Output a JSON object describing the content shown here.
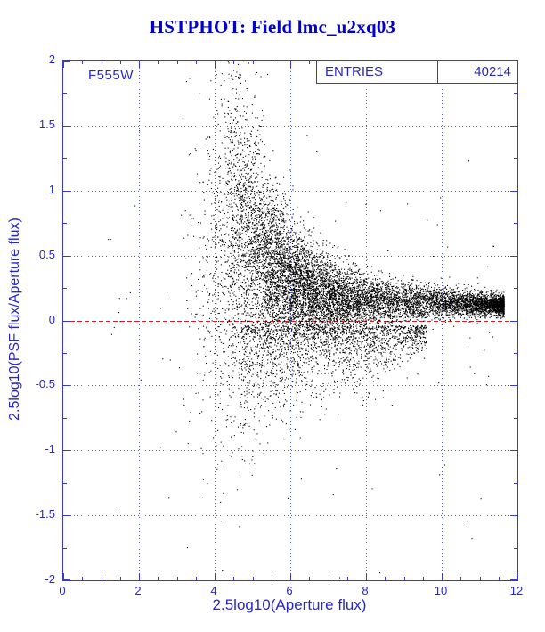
{
  "title": "HSTPHOT: Field lmc_u2xq03",
  "filter_label": "F555W",
  "stats": {
    "label": "ENTRIES",
    "value": "40214"
  },
  "chart_data": {
    "type": "scatter",
    "title": "HSTPHOT: Field lmc_u2xq03",
    "xlabel": "2.5log10(Aperture flux)",
    "ylabel": "2.5log10(PSF flux/Aperture flux)",
    "xlim": [
      0,
      12
    ],
    "ylim": [
      -2,
      2
    ],
    "x_ticks": [
      0,
      2,
      4,
      6,
      8,
      10,
      12
    ],
    "y_ticks": [
      2,
      1.5,
      1,
      0.5,
      0,
      -0.5,
      -1,
      -1.5,
      -2
    ],
    "x_minor_step": 0.5,
    "y_minor_step": 0.25,
    "grid": true,
    "legend": "none",
    "n_points": 40214,
    "reference_line": {
      "y": 0,
      "color": "#cc2222",
      "style": "dashed"
    },
    "colors": {
      "points": "#000000",
      "frame": "#3a3ac8",
      "grid": "#5a5acc",
      "axis_text": "#2828c8",
      "title_text": "#0000cc",
      "background": "#ffffff"
    },
    "distribution_note": "PSF-to-aperture flux ratio vs aperture flux: wide scatter (-2..+2) at faint end near x=4.3-5, dense cloud at x=5-8 around y=0.1-0.3, tight bright-star band converging to y=0.12 for x=8-11.6, negative tail to y=-1.5, sparse outliers at x<4",
    "point_synthesis": {
      "seed": 1337,
      "components": [
        {
          "kind": "band",
          "n": 4500,
          "x_min": 7.0,
          "x_max": 11.65,
          "x_pow": 1.7,
          "y_mu0": 0.12,
          "y_mu_slope": 0.04,
          "y_sig0": 0.035,
          "y_sig_slope": 0.07
        },
        {
          "kind": "cloud",
          "n": 5800,
          "x_mu": 6.0,
          "x_sig": 1.15,
          "x_min": 4.35,
          "x_max": 9.8,
          "y_base": 0.13,
          "y_amp": 0.45,
          "y_scale": 0.95,
          "sig_base": 0.09,
          "sig_amp": 0.5,
          "sig_scale": 1.3,
          "skew_amp": 0.55,
          "skew_scale": 1.0
        },
        {
          "kind": "neg",
          "n": 1600,
          "x_min": 4.7,
          "x_max": 9.6,
          "y_sig": 0.4,
          "y_off": 0.04
        },
        {
          "kind": "plume",
          "n": 800,
          "x_mu": 4.35,
          "x_sig": 0.5,
          "x_min": 3.1,
          "x_max": 5.3,
          "y_mu": 0.45,
          "y_sig": 0.75
        },
        {
          "kind": "outliers",
          "n": 140,
          "x_min": 1.1,
          "x_max": 11.5,
          "y_sig": 0.85
        }
      ]
    }
  }
}
